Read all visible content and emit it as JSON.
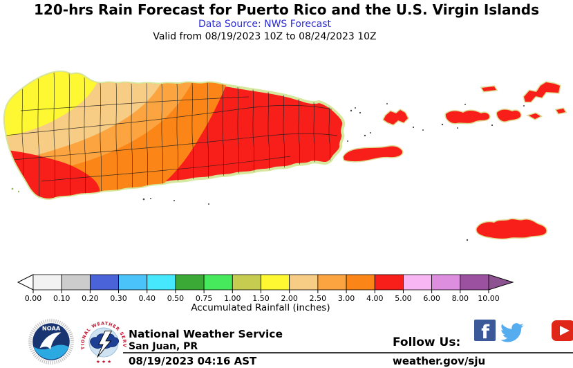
{
  "header": {
    "title": "120-hrs Rain Forecast for Puerto Rico and the U.S. Virgin Islands",
    "data_source": "Data Source: NWS Forecast",
    "valid": "Valid from 08/19/2023 10Z to 08/24/2023 10Z",
    "data_source_color": "#2a2ad8"
  },
  "legend": {
    "caption": "Accumulated Rainfall (inches)",
    "ticks": [
      "0.00",
      "0.10",
      "0.20",
      "0.30",
      "0.40",
      "0.50",
      "0.75",
      "1.00",
      "1.50",
      "2.00",
      "2.50",
      "3.00",
      "4.00",
      "5.00",
      "6.00",
      "8.00",
      "10.00"
    ],
    "colors": [
      "#f2f2f2",
      "#cccccc",
      "#4a63d8",
      "#49c3f9",
      "#45e8fd",
      "#3aa935",
      "#46e95c",
      "#c6cc4f",
      "#fdf832",
      "#f7cd85",
      "#fba440",
      "#fb8617",
      "#f81e19",
      "#f8b7f3",
      "#dd8ede",
      "#9b51a0"
    ],
    "left_arrow_color": "#ffffff",
    "right_arrow_color": "#8d5391"
  },
  "map": {
    "coast_halo_color": "#d6e89e",
    "zones": [
      {
        "range": "1.50-2.00",
        "color": "#fdf832",
        "area": "northwest Puerto Rico"
      },
      {
        "range": "2.00-2.50",
        "color": "#f7cd85",
        "area": "north-central Puerto Rico"
      },
      {
        "range": "2.50-3.00",
        "color": "#fba440",
        "area": "west-central band"
      },
      {
        "range": "3.00-4.00",
        "color": "#fb8617",
        "area": "central Puerto Rico"
      },
      {
        "range": "4.00-5.00",
        "color": "#f81e19",
        "area": "eastern PR, southwest coast, Vieques, Culebra, U.S. Virgin Islands"
      }
    ]
  },
  "footer": {
    "agency": "National Weather Service",
    "office": "San Juan, PR",
    "timestamp": "08/19/2023 04:16 AST",
    "follow_label": "Follow Us:",
    "website": "weather.gov/sju",
    "noaa_text": "NOAA",
    "nws_ring_text": "NATIONAL WEATHER SERVICE",
    "nws_ring_stars": "★ ★ ★",
    "social": {
      "facebook_color": "#3b5998",
      "twitter_color": "#55acee",
      "youtube_color": "#e02717"
    }
  }
}
